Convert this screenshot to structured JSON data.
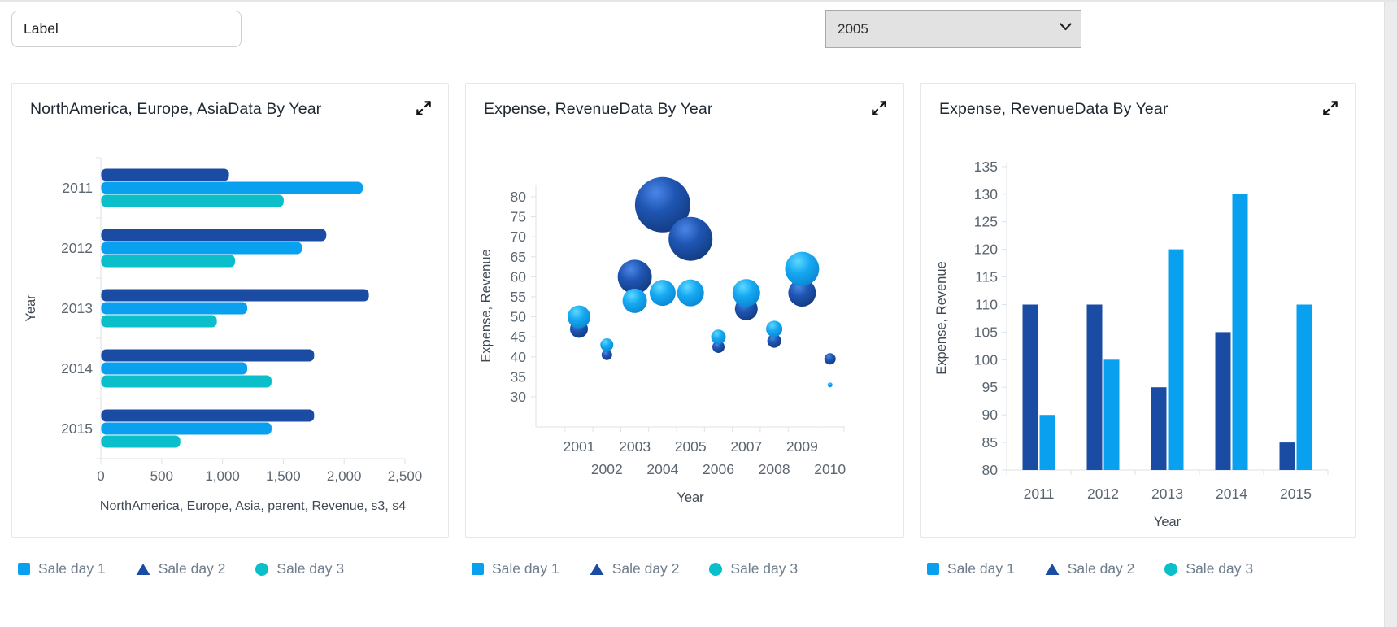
{
  "header": {
    "label_input": {
      "value": "Label"
    },
    "year_dropdown": {
      "value": "2005"
    }
  },
  "legend": {
    "items": [
      {
        "label": "Sale day 1",
        "shape": "square",
        "color": "#09a1ef"
      },
      {
        "label": "Sale day 2",
        "shape": "triangle",
        "color": "#1b4ca3"
      },
      {
        "label": "Sale day 3",
        "shape": "circle",
        "color": "#0bbfca"
      }
    ]
  },
  "colors": {
    "series1": "#09a1ef",
    "series2": "#1b4ca3",
    "series3": "#0bbfca",
    "axis_line": "#dde2e8",
    "axis_text": "#5c6670",
    "axis_title_text": "#3f4954",
    "bubble_light": [
      "#5fd8ff",
      "#16a9f3",
      "#0b85d0"
    ],
    "bubble_dark": [
      "#4a86e8",
      "#1f55b2",
      "#123a7e"
    ]
  },
  "chart_data": [
    {
      "type": "bar",
      "orientation": "horizontal",
      "title": "NorthAmerica, Europe, AsiaData By Year",
      "categories": [
        "2011",
        "2012",
        "2013",
        "2014",
        "2015"
      ],
      "series": [
        {
          "name": "Sale day 2",
          "color": "#1b4ca3",
          "values": [
            1050,
            1850,
            2200,
            1750,
            1750
          ]
        },
        {
          "name": "Sale day 1",
          "color": "#09a1ef",
          "values": [
            2150,
            1650,
            1200,
            1200,
            1400
          ]
        },
        {
          "name": "Sale day 3",
          "color": "#0bbfca",
          "values": [
            1500,
            1100,
            950,
            1400,
            650
          ]
        }
      ],
      "xlabel": "NorthAmerica, Europe, Asia, parent, Revenue, s3, s4",
      "ylabel": "Year",
      "xlim": [
        0,
        2500
      ],
      "xtick_values": [
        0,
        500,
        1000,
        1500,
        2000,
        2500
      ],
      "xtick_labels": [
        "0",
        "500",
        "1,000",
        "1,500",
        "2,000",
        "2,500"
      ],
      "grid": false,
      "legend_position": "bottom-outside"
    },
    {
      "type": "scatter",
      "subtype": "bubble",
      "title": "Expense, RevenueData By Year",
      "xlabel": "Year",
      "ylabel": "Expense, Revenue",
      "xlim": [
        2000,
        2011
      ],
      "ylim": [
        30,
        80
      ],
      "ytick_values": [
        30,
        35,
        40,
        45,
        50,
        55,
        60,
        65,
        70,
        75,
        80
      ],
      "x_years": [
        2001,
        2002,
        2003,
        2004,
        2005,
        2006,
        2007,
        2008,
        2009,
        2010
      ],
      "grid": false,
      "legend_position": "bottom-outside",
      "bubbles": [
        {
          "x": 2001,
          "series": "Sale day 2",
          "y": 47,
          "r": 11
        },
        {
          "x": 2001,
          "series": "Sale day 1",
          "y": 50,
          "r": 14
        },
        {
          "x": 2002,
          "series": "Sale day 2",
          "y": 40.5,
          "r": 6.5
        },
        {
          "x": 2002,
          "series": "Sale day 1",
          "y": 43,
          "r": 8
        },
        {
          "x": 2003,
          "series": "Sale day 2",
          "y": 60,
          "r": 21
        },
        {
          "x": 2003,
          "series": "Sale day 1",
          "y": 54,
          "r": 15
        },
        {
          "x": 2004,
          "series": "Sale day 2",
          "y": 78,
          "r": 34
        },
        {
          "x": 2004,
          "series": "Sale day 1",
          "y": 56,
          "r": 16
        },
        {
          "x": 2005,
          "series": "Sale day 2",
          "y": 69.5,
          "r": 27
        },
        {
          "x": 2005,
          "series": "Sale day 1",
          "y": 56,
          "r": 16.5
        },
        {
          "x": 2006,
          "series": "Sale day 2",
          "y": 42.5,
          "r": 7.5
        },
        {
          "x": 2006,
          "series": "Sale day 1",
          "y": 45,
          "r": 9
        },
        {
          "x": 2007,
          "series": "Sale day 2",
          "y": 52,
          "r": 14
        },
        {
          "x": 2007,
          "series": "Sale day 1",
          "y": 56,
          "r": 17
        },
        {
          "x": 2008,
          "series": "Sale day 2",
          "y": 44,
          "r": 8.5
        },
        {
          "x": 2008,
          "series": "Sale day 1",
          "y": 47,
          "r": 10
        },
        {
          "x": 2009,
          "series": "Sale day 2",
          "y": 56,
          "r": 17
        },
        {
          "x": 2009,
          "series": "Sale day 1",
          "y": 62,
          "r": 21
        },
        {
          "x": 2010,
          "series": "Sale day 2",
          "y": 39.5,
          "r": 7
        },
        {
          "x": 2010,
          "series": "Sale day 1",
          "y": 33,
          "r": 3
        }
      ]
    },
    {
      "type": "bar",
      "orientation": "vertical",
      "title": "Expense, RevenueData By Year",
      "categories": [
        "2011",
        "2012",
        "2013",
        "2014",
        "2015"
      ],
      "series": [
        {
          "name": "Sale day 2",
          "color": "#1b4ca3",
          "values": [
            110,
            110,
            95,
            105,
            85
          ]
        },
        {
          "name": "Sale day 1",
          "color": "#09a1ef",
          "values": [
            90,
            100,
            120,
            130,
            110
          ]
        }
      ],
      "xlabel": "Year",
      "ylabel": "Expense, Revenue",
      "ylim": [
        80,
        135
      ],
      "ytick_values": [
        80,
        85,
        90,
        95,
        100,
        105,
        110,
        115,
        120,
        125,
        130,
        135
      ],
      "grid": false,
      "legend_position": "bottom-outside"
    }
  ]
}
